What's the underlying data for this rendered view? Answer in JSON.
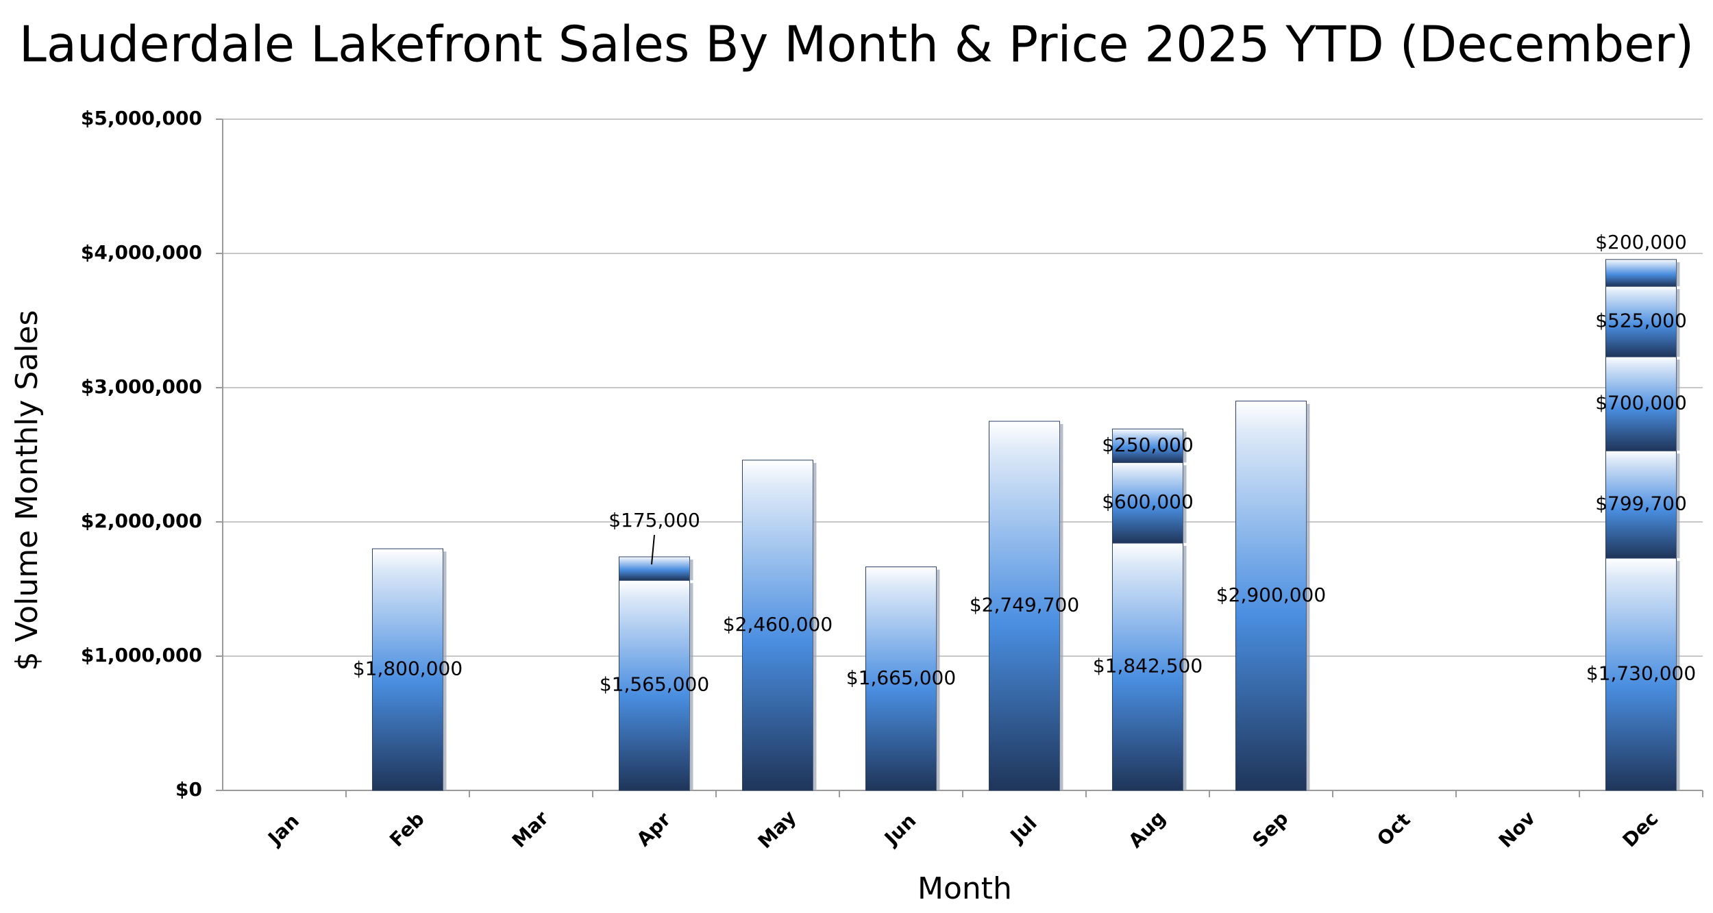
{
  "chart_data": {
    "type": "stacked-bar",
    "title": "Lauderdale Lakefront Sales By Month & Price 2025 YTD (December)",
    "x_label": "Month",
    "y_label": "$ Volume Monthly Sales",
    "categories": [
      "Jan",
      "Feb",
      "Mar",
      "Apr",
      "May",
      "Jun",
      "Jul",
      "Aug",
      "Sep",
      "Oct",
      "Nov",
      "Dec"
    ],
    "color": "#4a8ee0",
    "grid": true,
    "ylim": [
      0,
      5000000
    ],
    "yticks": [
      {
        "value": 0,
        "label": "$0"
      },
      {
        "value": 1000000,
        "label": "$1,000,000"
      },
      {
        "value": 2000000,
        "label": "$2,000,000"
      },
      {
        "value": 3000000,
        "label": "$3,000,000"
      },
      {
        "value": 4000000,
        "label": "$4,000,000"
      },
      {
        "value": 5000000,
        "label": "$5,000,000"
      }
    ],
    "series": [
      {
        "values": [
          null,
          1800000,
          null,
          1565000,
          2460000,
          1665000,
          2749700,
          1842500,
          2900000,
          null,
          null,
          1730000
        ],
        "value_labels": [
          null,
          "$1,800,000",
          null,
          "$1,565,000",
          "$2,460,000",
          "$1,665,000",
          "$2,749,700",
          "$1,842,500",
          "$2,900,000",
          null,
          null,
          "$1,730,000"
        ]
      },
      {
        "values": [
          null,
          null,
          null,
          175000,
          null,
          null,
          null,
          600000,
          null,
          null,
          null,
          799700
        ],
        "value_labels": [
          null,
          null,
          null,
          "$175,000",
          null,
          null,
          null,
          "$600,000",
          null,
          null,
          null,
          "$799,700"
        ]
      },
      {
        "values": [
          null,
          null,
          null,
          null,
          null,
          null,
          null,
          250000,
          null,
          null,
          null,
          700000
        ],
        "value_labels": [
          null,
          null,
          null,
          null,
          null,
          null,
          null,
          "$250,000",
          null,
          null,
          null,
          "$700,000"
        ]
      },
      {
        "values": [
          null,
          null,
          null,
          null,
          null,
          null,
          null,
          null,
          null,
          null,
          null,
          525000
        ],
        "value_labels": [
          null,
          null,
          null,
          null,
          null,
          null,
          null,
          null,
          null,
          null,
          null,
          "$525,000"
        ]
      },
      {
        "values": [
          null,
          null,
          null,
          null,
          null,
          null,
          null,
          null,
          null,
          null,
          null,
          200000
        ],
        "value_labels": [
          null,
          null,
          null,
          null,
          null,
          null,
          null,
          null,
          null,
          null,
          null,
          "$200,000"
        ]
      }
    ]
  }
}
